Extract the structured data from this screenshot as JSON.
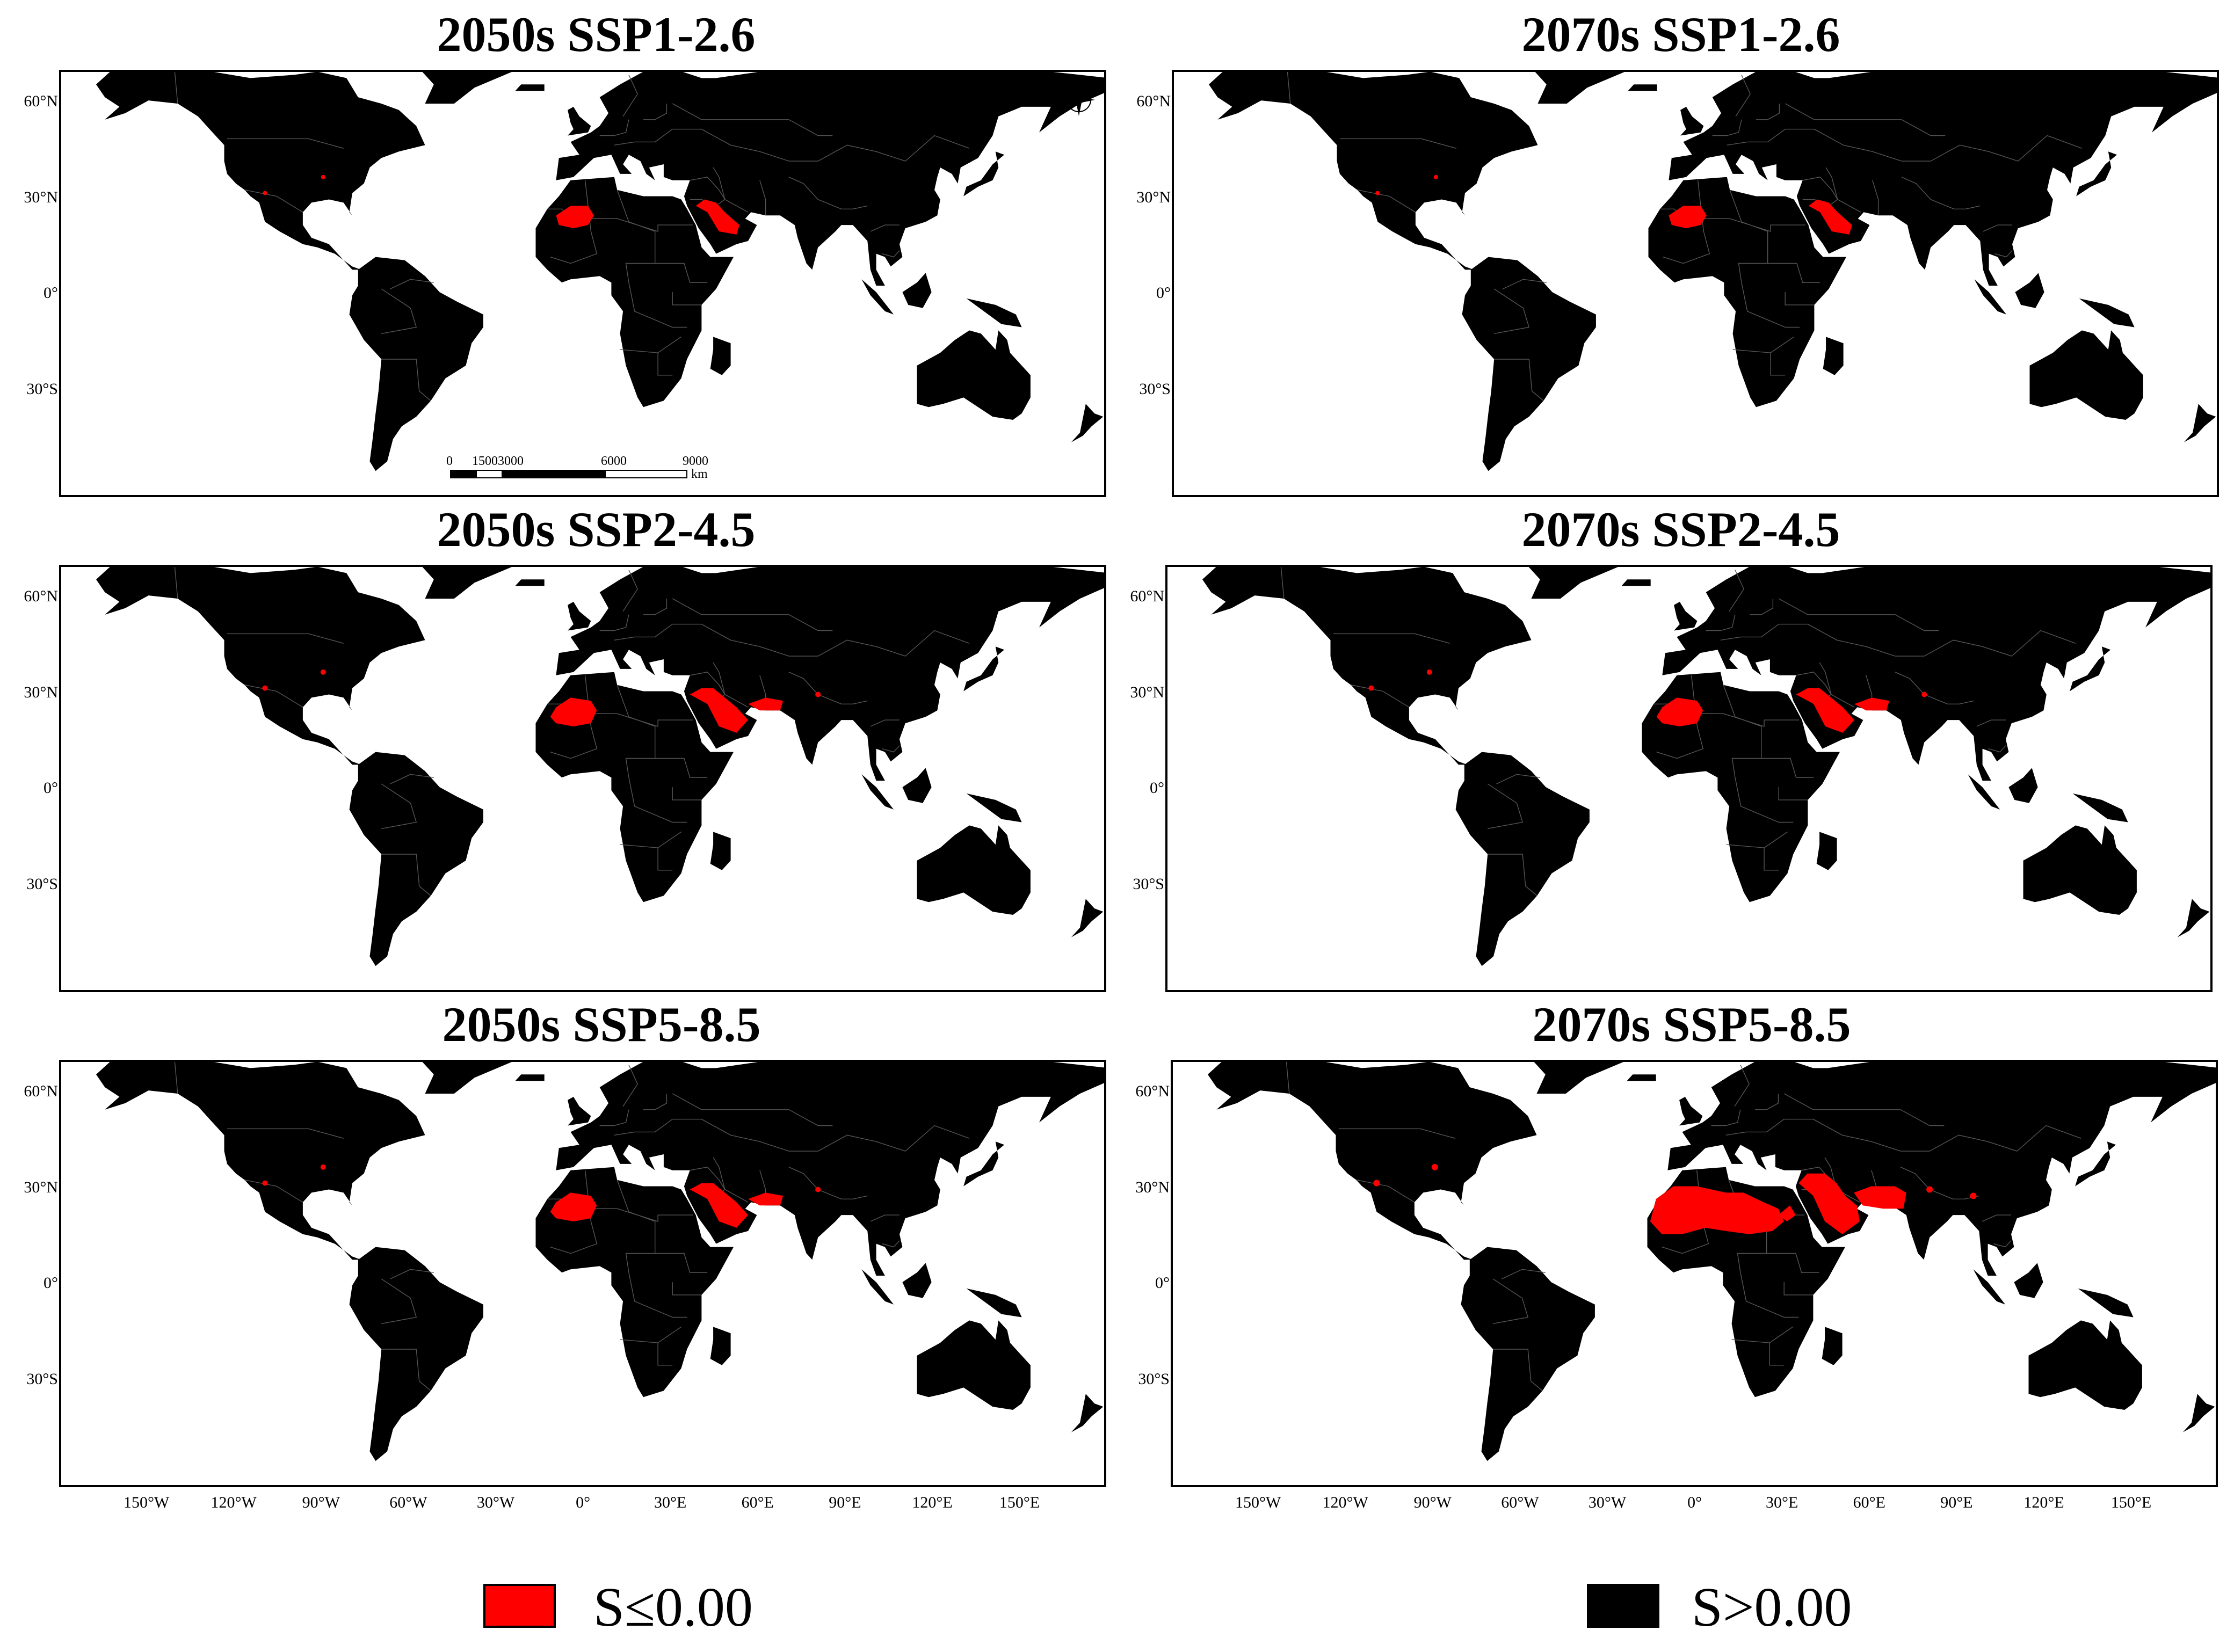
{
  "panels": [
    {
      "id": "p1",
      "title": "2050s SSP1-2.6",
      "level": 1
    },
    {
      "id": "p2",
      "title": "2070s SSP1-2.6",
      "level": 1
    },
    {
      "id": "p3",
      "title": "2050s SSP2-4.5",
      "level": 2
    },
    {
      "id": "p4",
      "title": "2070s SSP2-4.5",
      "level": 2
    },
    {
      "id": "p5",
      "title": "2050s SSP5-8.5",
      "level": 2
    },
    {
      "id": "p6",
      "title": "2070s SSP5-8.5",
      "level": 3
    }
  ],
  "axes": {
    "lat_ticks": [
      "60°N",
      "30°N",
      "0°",
      "30°S"
    ],
    "lon_ticks": [
      "150°W",
      "120°W",
      "90°W",
      "60°W",
      "30°W",
      "0°",
      "30°E",
      "60°E",
      "90°E",
      "120°E",
      "150°E"
    ]
  },
  "scale_bar": {
    "labels": [
      "0",
      "1500",
      "3000",
      "6000",
      "9000"
    ],
    "unit": "km"
  },
  "legend": [
    {
      "label": "S≤0.00",
      "color": "#ff0000"
    },
    {
      "label": "S>0.00",
      "color": "#000000"
    }
  ],
  "colors": {
    "land": "#000000",
    "unsuitable": "#ff0000",
    "border": "#555555"
  },
  "icons": {
    "compass": "north-arrow-compass-icon"
  }
}
